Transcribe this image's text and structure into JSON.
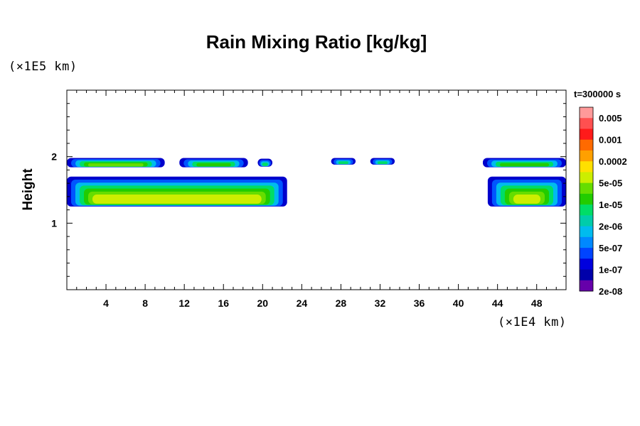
{
  "chart_data": {
    "type": "heatmap",
    "title": "Rain Mixing Ratio [kg/kg]",
    "xlabel": "",
    "ylabel": "Height",
    "x_unit": "(×1E4 km)",
    "y_unit": "(×1E5 km)",
    "xlim": [
      0,
      51
    ],
    "ylim": [
      0,
      3
    ],
    "x_ticks": [
      4,
      8,
      12,
      16,
      20,
      24,
      28,
      32,
      36,
      40,
      44,
      48
    ],
    "y_ticks": [
      1,
      2
    ],
    "time_label": "t=300000 s",
    "colorbar": {
      "labels": [
        "0.005",
        "0.001",
        "0.0002",
        "5e-05",
        "1e-05",
        "2e-06",
        "5e-07",
        "1e-07",
        "2e-08"
      ],
      "colors": [
        "#ff9a9a",
        "#ff5050",
        "#ff1a1a",
        "#ff6a00",
        "#ffa000",
        "#ffe000",
        "#ccee00",
        "#66dd00",
        "#22cc00",
        "#00dd66",
        "#00ccaa",
        "#00bbee",
        "#0088ff",
        "#0044ff",
        "#0000dd",
        "#0000aa",
        "#6600aa"
      ]
    },
    "features": [
      {
        "x": [
          0,
          10
        ],
        "y": [
          1.84,
          1.98
        ],
        "level": "1e-05"
      },
      {
        "x": [
          11.5,
          18.5
        ],
        "y": [
          1.84,
          1.98
        ],
        "level": "2e-06"
      },
      {
        "x": [
          19.5,
          21
        ],
        "y": [
          1.85,
          1.97
        ],
        "level": "5e-07"
      },
      {
        "x": [
          27,
          29.5
        ],
        "y": [
          1.88,
          1.98
        ],
        "level": "5e-07"
      },
      {
        "x": [
          31,
          33.5
        ],
        "y": [
          1.88,
          1.98
        ],
        "level": "5e-07"
      },
      {
        "x": [
          42.5,
          51
        ],
        "y": [
          1.84,
          1.98
        ],
        "level": "2e-06"
      },
      {
        "x": [
          0,
          22.5
        ],
        "y": [
          1.25,
          1.7
        ],
        "level": "5e-05"
      },
      {
        "x": [
          43,
          51
        ],
        "y": [
          1.25,
          1.7
        ],
        "level": "5e-05"
      }
    ]
  }
}
